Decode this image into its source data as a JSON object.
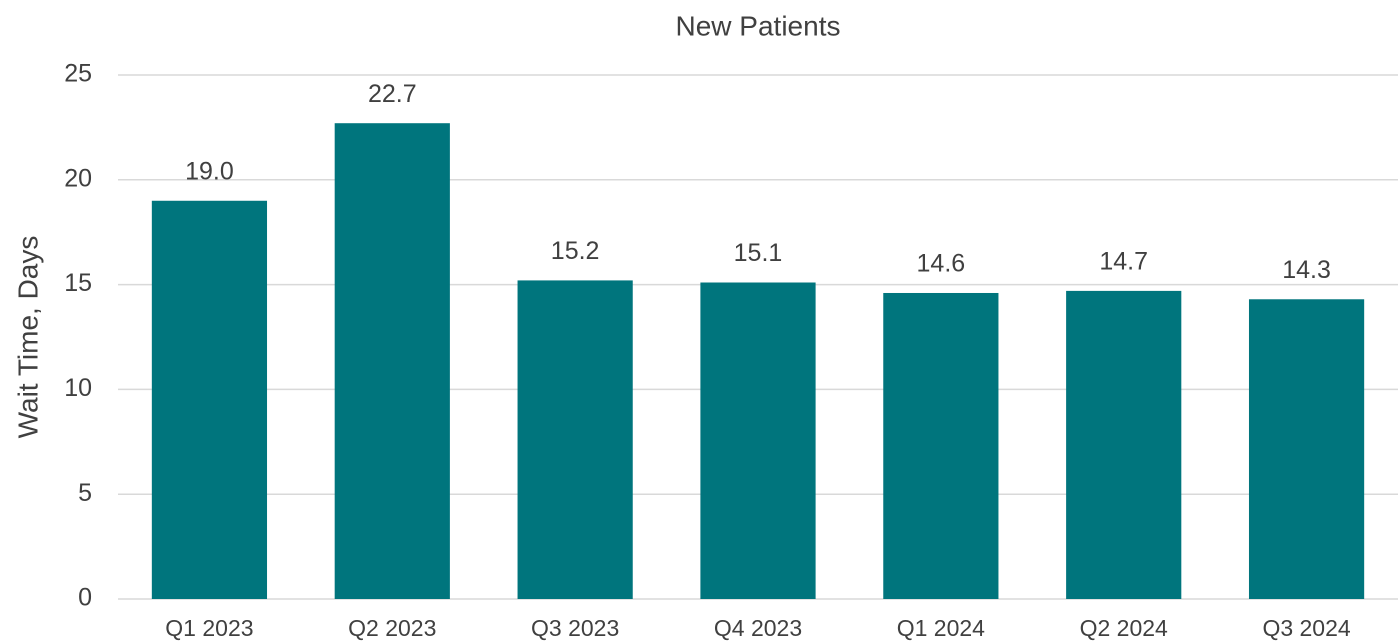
{
  "chart_data": {
    "type": "bar",
    "title": "New Patients",
    "y_label": "Wait Time, Days",
    "categories": [
      "Q1 2023",
      "Q2 2023",
      "Q3 2023",
      "Q4 2023",
      "Q1 2024",
      "Q2 2024",
      "Q3 2024"
    ],
    "values": [
      19.0,
      22.7,
      15.2,
      15.1,
      14.6,
      14.7,
      14.3
    ],
    "value_labels": [
      "19.0",
      "22.7",
      "15.2",
      "15.1",
      "14.6",
      "14.7",
      "14.3"
    ],
    "color": "#00757d",
    "ylim": [
      0,
      25
    ],
    "yticks": [
      0,
      5,
      10,
      15,
      20,
      25
    ],
    "grid": true
  }
}
